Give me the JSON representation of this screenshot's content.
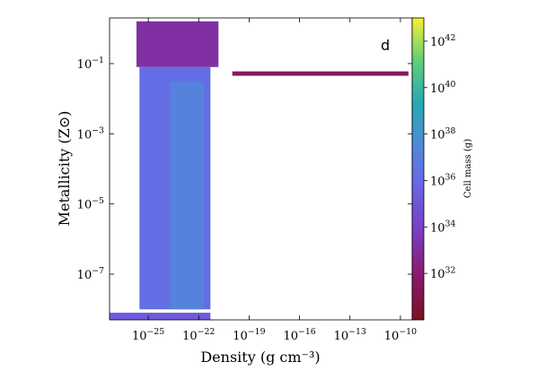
{
  "chart_data": {
    "type": "heatmap",
    "panel_label": "d",
    "xlabel": "Density (g cm⁻³)",
    "ylabel": "Metallicity (Z⊙)",
    "xscale": "log",
    "yscale": "log",
    "xlim": [
      5e-28,
      5e-10
    ],
    "ylim": [
      5e-09,
      2.0
    ],
    "x_ticks": [
      {
        "value": 1e-25,
        "base": "10",
        "exp": "−25"
      },
      {
        "value": 1e-22,
        "base": "10",
        "exp": "−22"
      },
      {
        "value": 1e-19,
        "base": "10",
        "exp": "−19"
      },
      {
        "value": 1e-16,
        "base": "10",
        "exp": "−16"
      },
      {
        "value": 1e-13,
        "base": "10",
        "exp": "−13"
      },
      {
        "value": 1e-10,
        "base": "10",
        "exp": "−10"
      }
    ],
    "y_ticks": [
      {
        "value": 0.1,
        "base": "10",
        "exp": "−1"
      },
      {
        "value": 0.001,
        "base": "10",
        "exp": "−3"
      },
      {
        "value": 1e-05,
        "base": "10",
        "exp": "−5"
      },
      {
        "value": 1e-07,
        "base": "10",
        "exp": "−7"
      }
    ],
    "colorbar": {
      "label": "Cell mass (g)",
      "scale": "log",
      "range": [
        1e+30,
        1e+43
      ],
      "colormap": "viridis",
      "ticks": [
        {
          "value": 1e+32,
          "base": "10",
          "exp": "32"
        },
        {
          "value": 1e+34,
          "base": "10",
          "exp": "34"
        },
        {
          "value": 1e+36,
          "base": "10",
          "exp": "36"
        },
        {
          "value": 1e+38,
          "base": "10",
          "exp": "38"
        },
        {
          "value": 1e+40,
          "base": "10",
          "exp": "40"
        },
        {
          "value": 1e+42,
          "base": "10",
          "exp": "42"
        }
      ]
    },
    "regions": [
      {
        "name": "main-column",
        "x": [
          3e-26,
          5e-22
        ],
        "y": [
          1e-08,
          0.08
        ],
        "cell_mass_log10": 36
      },
      {
        "name": "core-band",
        "x": [
          2e-24,
          2e-22
        ],
        "y": [
          1e-08,
          0.03
        ],
        "cell_mass_log10": 37
      },
      {
        "name": "upper-fan",
        "x": [
          2e-26,
          1.5e-21
        ],
        "y": [
          0.08,
          1.6
        ],
        "cell_mass_log10": 33
      },
      {
        "name": "metal-ridge",
        "x": [
          1e-20,
          3e-10
        ],
        "y": [
          0.045,
          0.06
        ],
        "cell_mass_log10": 31.5
      },
      {
        "name": "floor-strip",
        "x": [
          5e-28,
          5e-22
        ],
        "y": [
          5e-09,
          8e-09
        ],
        "cell_mass_log10": 35
      }
    ]
  }
}
